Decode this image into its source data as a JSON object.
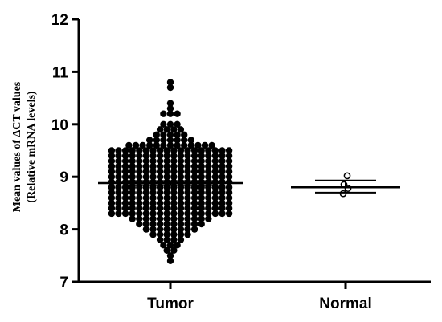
{
  "chart_data": {
    "type": "scatter",
    "title": "",
    "ylabel_line1": "Mean values of ΔCT values",
    "ylabel_line2": "(Relative mRNA levels)",
    "xlabel": "",
    "categories": [
      "Tumor",
      "Normal"
    ],
    "ylim": [
      7,
      12
    ],
    "yticks": [
      7,
      8,
      9,
      10,
      11,
      12
    ],
    "ytick_labels": [
      "7",
      "8",
      "9",
      "10",
      "11",
      "12"
    ],
    "grid": false,
    "legend": "none",
    "series": [
      {
        "category": "Tumor",
        "values": [
          7.4,
          7.5,
          7.6,
          7.6,
          7.7,
          7.7,
          7.7,
          7.8,
          7.8,
          7.8,
          7.8,
          7.9,
          7.9,
          7.9,
          7.9,
          7.9,
          7.9,
          8.0,
          8.0,
          8.0,
          8.0,
          8.0,
          8.0,
          8.0,
          8.0,
          8.1,
          8.1,
          8.1,
          8.1,
          8.1,
          8.1,
          8.1,
          8.1,
          8.1,
          8.1,
          8.2,
          8.2,
          8.2,
          8.2,
          8.2,
          8.2,
          8.2,
          8.2,
          8.2,
          8.2,
          8.2,
          8.2,
          8.3,
          8.3,
          8.3,
          8.3,
          8.3,
          8.3,
          8.3,
          8.3,
          8.3,
          8.3,
          8.3,
          8.3,
          8.3,
          8.3,
          8.3,
          8.3,
          8.3,
          8.3,
          8.4,
          8.4,
          8.4,
          8.4,
          8.4,
          8.4,
          8.4,
          8.4,
          8.4,
          8.4,
          8.4,
          8.4,
          8.4,
          8.4,
          8.4,
          8.4,
          8.4,
          8.4,
          8.5,
          8.5,
          8.5,
          8.5,
          8.5,
          8.5,
          8.5,
          8.5,
          8.5,
          8.5,
          8.5,
          8.5,
          8.5,
          8.5,
          8.5,
          8.5,
          8.5,
          8.5,
          8.6,
          8.6,
          8.6,
          8.6,
          8.6,
          8.6,
          8.6,
          8.6,
          8.6,
          8.6,
          8.6,
          8.6,
          8.6,
          8.6,
          8.6,
          8.6,
          8.6,
          8.6,
          8.7,
          8.7,
          8.7,
          8.7,
          8.7,
          8.7,
          8.7,
          8.7,
          8.7,
          8.7,
          8.7,
          8.7,
          8.7,
          8.7,
          8.7,
          8.7,
          8.7,
          8.7,
          8.8,
          8.8,
          8.8,
          8.8,
          8.8,
          8.8,
          8.8,
          8.8,
          8.8,
          8.8,
          8.8,
          8.8,
          8.8,
          8.8,
          8.8,
          8.8,
          8.8,
          8.8,
          8.9,
          8.9,
          8.9,
          8.9,
          8.9,
          8.9,
          8.9,
          8.9,
          8.9,
          8.9,
          8.9,
          8.9,
          8.9,
          8.9,
          8.9,
          8.9,
          8.9,
          8.9,
          9.0,
          9.0,
          9.0,
          9.0,
          9.0,
          9.0,
          9.0,
          9.0,
          9.0,
          9.0,
          9.0,
          9.0,
          9.0,
          9.0,
          9.0,
          9.0,
          9.0,
          9.0,
          9.1,
          9.1,
          9.1,
          9.1,
          9.1,
          9.1,
          9.1,
          9.1,
          9.1,
          9.1,
          9.1,
          9.1,
          9.1,
          9.1,
          9.1,
          9.1,
          9.1,
          9.1,
          9.2,
          9.2,
          9.2,
          9.2,
          9.2,
          9.2,
          9.2,
          9.2,
          9.2,
          9.2,
          9.2,
          9.2,
          9.2,
          9.2,
          9.2,
          9.2,
          9.2,
          9.2,
          9.3,
          9.3,
          9.3,
          9.3,
          9.3,
          9.3,
          9.3,
          9.3,
          9.3,
          9.3,
          9.3,
          9.3,
          9.3,
          9.3,
          9.3,
          9.3,
          9.3,
          9.3,
          9.4,
          9.4,
          9.4,
          9.4,
          9.4,
          9.4,
          9.4,
          9.4,
          9.4,
          9.4,
          9.4,
          9.4,
          9.4,
          9.4,
          9.4,
          9.4,
          9.4,
          9.4,
          9.5,
          9.5,
          9.5,
          9.5,
          9.5,
          9.5,
          9.5,
          9.5,
          9.5,
          9.5,
          9.5,
          9.5,
          9.5,
          9.5,
          9.5,
          9.5,
          9.5,
          9.5,
          9.6,
          9.6,
          9.6,
          9.6,
          9.6,
          9.6,
          9.6,
          9.6,
          9.6,
          9.6,
          9.6,
          9.6,
          9.6,
          9.7,
          9.7,
          9.7,
          9.7,
          9.7,
          9.7,
          9.7,
          9.8,
          9.8,
          9.8,
          9.8,
          9.8,
          9.9,
          9.9,
          9.9,
          9.9,
          10.0,
          10.0,
          10.0,
          10.2,
          10.2,
          10.2,
          10.3,
          10.4,
          10.7,
          10.8
        ],
        "mean": 8.88,
        "sem_low": 8.84,
        "sem_high": 8.92
      },
      {
        "category": "Normal",
        "values": [
          8.68,
          8.78,
          8.85,
          9.02
        ],
        "mean": 8.8,
        "sem_low": 8.7,
        "sem_high": 8.93
      }
    ]
  },
  "colors": {
    "marker": "#000000",
    "axis": "#000000",
    "background": "#ffffff"
  },
  "markers": {
    "Tumor": "filled-circle",
    "Normal": "open-circle"
  }
}
